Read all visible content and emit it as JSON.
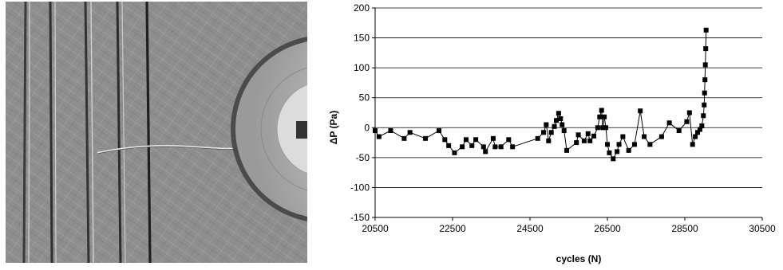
{
  "chart_data": {
    "type": "scatter",
    "line": true,
    "marker": "square",
    "marker_color": "#000000",
    "line_color": "#000000",
    "grid": "horizontal",
    "legend": "none",
    "xlabel": "cycles (N)",
    "ylabel": "ΔP (Pa)",
    "xlim": [
      20500,
      30500
    ],
    "ylim": [
      -150,
      200
    ],
    "xticks": [
      "20500",
      "22500",
      "24500",
      "26500",
      "28500",
      "30500"
    ],
    "yticks": [
      "-150",
      "-100",
      "-50",
      "0",
      "50",
      "100",
      "150",
      "200"
    ],
    "x": [
      20500,
      20600,
      20900,
      21250,
      21400,
      21800,
      22150,
      22300,
      22400,
      22550,
      22750,
      22850,
      23000,
      23100,
      23300,
      23350,
      23550,
      23600,
      23750,
      23950,
      24050,
      24700,
      24850,
      24920,
      24980,
      25050,
      25130,
      25180,
      25240,
      25290,
      25330,
      25380,
      25450,
      25700,
      25750,
      25900,
      26000,
      26050,
      26150,
      26250,
      26300,
      26350,
      26380,
      26420,
      26460,
      26500,
      26550,
      26650,
      26750,
      26800,
      26900,
      27050,
      27200,
      27350,
      27450,
      27600,
      27900,
      28100,
      28350,
      28550,
      28620,
      28700,
      28770,
      28830,
      28890,
      28940,
      28980,
      29000,
      29010,
      29020,
      29030,
      29040,
      29050
    ],
    "y": [
      -5,
      -15,
      -5,
      -18,
      -8,
      -18,
      -5,
      -20,
      -30,
      -42,
      -32,
      -20,
      -30,
      -20,
      -32,
      -40,
      -18,
      -32,
      -32,
      -20,
      -32,
      -18,
      -8,
      5,
      -22,
      -8,
      2,
      12,
      24,
      15,
      5,
      -5,
      -38,
      -25,
      -12,
      -22,
      -10,
      -22,
      -14,
      0,
      18,
      29,
      0,
      18,
      0,
      -28,
      -42,
      -52,
      -40,
      -28,
      -15,
      -38,
      -28,
      28,
      -15,
      -28,
      -15,
      8,
      -5,
      10,
      25,
      -28,
      -15,
      -8,
      -3,
      3,
      20,
      38,
      58,
      80,
      105,
      132,
      163
    ]
  },
  "photo": {
    "description_icon": "metal-surface-crack-photo",
    "tone": "#8c8c8c"
  }
}
